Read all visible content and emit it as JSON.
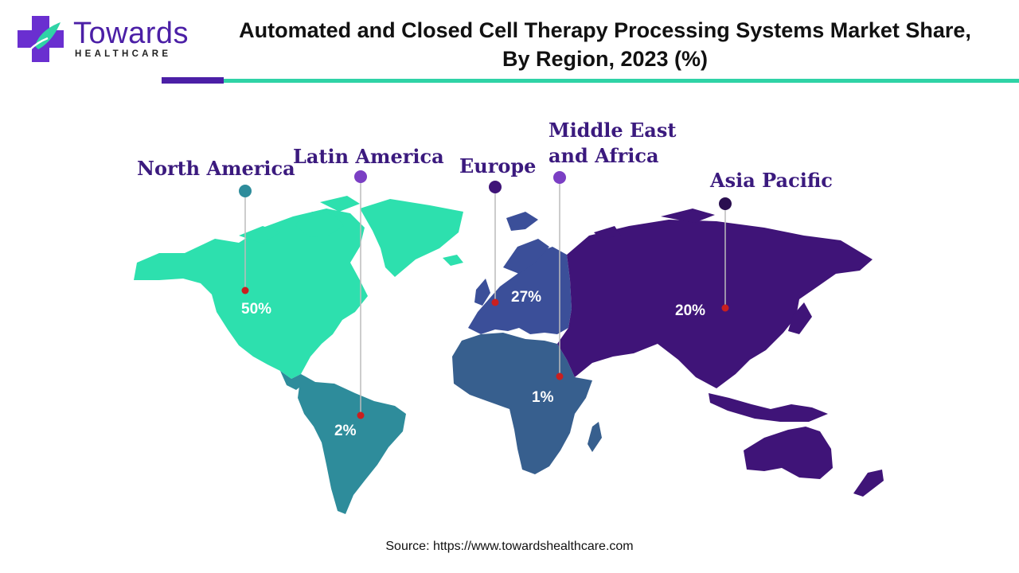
{
  "logo": {
    "word": "Towards",
    "sub": "HEALTHCARE"
  },
  "title_line1": "Automated and Closed Cell Therapy Processing Systems Market Share,",
  "title_line2": "By Region, 2023 (%)",
  "source": "Source: https://www.towardshealthcare.com",
  "colors": {
    "north_america": "#2de0ae",
    "latin_america": "#2e8c9b",
    "europe": "#3b4f99",
    "mea": "#375f8e",
    "asia_pacific": "#3f1478",
    "accent_purple": "#4b1fa6",
    "accent_green": "#2fd3a6",
    "marker_red": "#c91f1f"
  },
  "chart_data": {
    "type": "pie",
    "title": "Automated and Closed Cell Therapy Processing Systems Market Share, By Region, 2023 (%)",
    "categories": [
      "North America",
      "Latin America",
      "Europe",
      "Middle East and Africa",
      "Asia Pacific"
    ],
    "values": [
      50,
      2,
      27,
      1,
      20
    ],
    "unit": "%"
  },
  "regions": [
    {
      "id": "north_america",
      "name": "North America",
      "value": "50%",
      "color": "#2de0ae",
      "pin_color": "#2e8c9b"
    },
    {
      "id": "latin_america",
      "name": "Latin America",
      "value": "2%",
      "color": "#2e8c9b",
      "pin_color": "#7b3fc4"
    },
    {
      "id": "europe",
      "name": "Europe",
      "value": "27%",
      "color": "#3b4f99",
      "pin_color": "#3f1478"
    },
    {
      "id": "mea",
      "name": "Middle East and Africa",
      "name_line1": "Middle East",
      "name_line2": "and Africa",
      "value": "1%",
      "color": "#375f8e",
      "pin_color": "#7b3fc4"
    },
    {
      "id": "asia_pacific",
      "name": "Asia Pacific",
      "value": "20%",
      "color": "#3f1478",
      "pin_color": "#2a0f50"
    }
  ]
}
